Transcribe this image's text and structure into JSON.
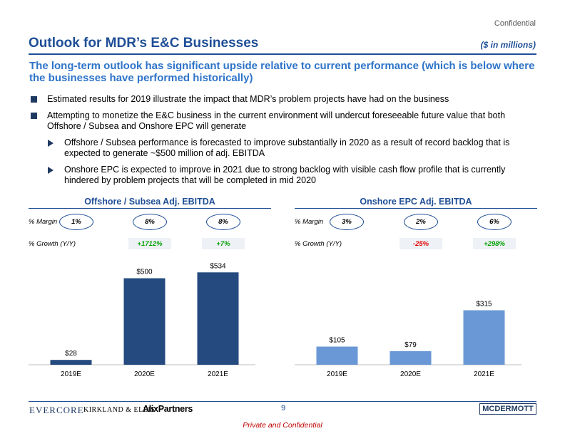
{
  "header": {
    "confidential": "Confidential",
    "title": "Outlook for MDR’s E&C Businesses",
    "units": "($ in millions)",
    "subtitle": "The long-term outlook has significant upside relative to current performance (which is below where the businesses have performed historically)"
  },
  "bullets": [
    "Estimated results for 2019 illustrate the impact that MDR’s problem projects have had on the business",
    "Attempting to monetize the E&C business in the current environment will undercut foreseeable future value that both Offshore / Subsea and Onshore EPC will generate"
  ],
  "sub_bullets": [
    "Offshore / Subsea performance is forecasted to improve substantially in 2020 as a result of record backlog that is expected to generate ~$500 million of adj. EBITDA",
    "Onshore EPC is expected to improve in 2021 due to strong backlog with visible cash flow profile that is currently hindered by problem projects that will be completed in mid 2020"
  ],
  "labels": {
    "margin": "% Margin",
    "growth": "% Growth (Y/Y)"
  },
  "colors": {
    "offshore_bar": "#244a7f",
    "onshore_bar": "#6a98d6",
    "positive": "#00a000",
    "negative": "#e00000",
    "accent": "#1f4e96"
  },
  "chart_data": [
    {
      "type": "bar",
      "title": "Offshore / Subsea Adj. EBITDA",
      "categories": [
        "2019E",
        "2020E",
        "2021E"
      ],
      "values": [
        28,
        500,
        534
      ],
      "value_labels": [
        "$28",
        "$500",
        "$534"
      ],
      "margins": [
        "1%",
        "8%",
        "8%"
      ],
      "growth": [
        "",
        "+1712%",
        "+7%"
      ],
      "ylim": [
        0,
        560
      ]
    },
    {
      "type": "bar",
      "title": "Onshore EPC Adj. EBITDA",
      "categories": [
        "2019E",
        "2020E",
        "2021E"
      ],
      "values": [
        105,
        79,
        315
      ],
      "value_labels": [
        "$105",
        "$79",
        "$315"
      ],
      "margins": [
        "3%",
        "2%",
        "6%"
      ],
      "growth": [
        "",
        "-25%",
        "+298%"
      ],
      "ylim": [
        0,
        560
      ]
    }
  ],
  "footer": {
    "evercore": "EVERCORE",
    "kirkland": "KIRKLAND & ELLIS",
    "alix": "AlixPartners",
    "page": "9",
    "mcdermott": "MCDERMOTT",
    "private": "Private and Confidential"
  }
}
